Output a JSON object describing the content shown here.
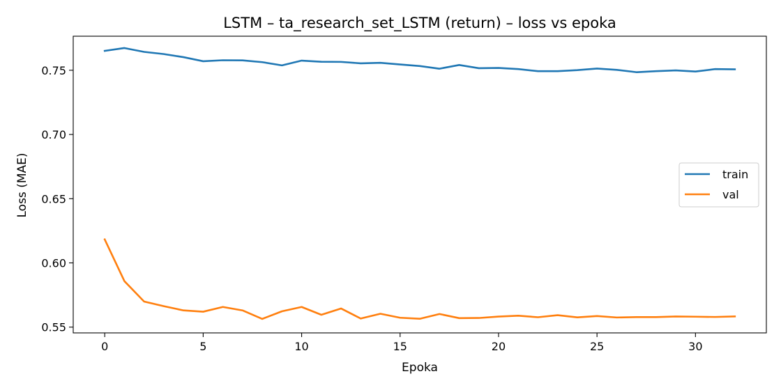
{
  "chart_data": {
    "type": "line",
    "title": "LSTM – ta_research_set_LSTM (return) – loss vs epoka",
    "xlabel": "Epoka",
    "ylabel": "Loss (MAE)",
    "xlim": [
      -1.6,
      33.6
    ],
    "ylim": [
      0.5455,
      0.7765
    ],
    "xticks": [
      0,
      5,
      10,
      15,
      20,
      25,
      30
    ],
    "xtick_labels": [
      "0",
      "5",
      "10",
      "15",
      "20",
      "25",
      "30"
    ],
    "yticks": [
      0.55,
      0.6,
      0.65,
      0.7,
      0.75
    ],
    "ytick_labels": [
      "0.55",
      "0.60",
      "0.65",
      "0.70",
      "0.75"
    ],
    "grid": false,
    "legend_position": "center-right",
    "x": [
      0,
      1,
      2,
      3,
      4,
      5,
      6,
      7,
      8,
      9,
      10,
      11,
      12,
      13,
      14,
      15,
      16,
      17,
      18,
      19,
      20,
      21,
      22,
      23,
      24,
      25,
      26,
      27,
      28,
      29,
      30,
      31,
      32
    ],
    "series": [
      {
        "name": "train",
        "color": "#1f77b4",
        "values": [
          0.7651,
          0.7673,
          0.7643,
          0.7626,
          0.7602,
          0.757,
          0.7578,
          0.7577,
          0.7563,
          0.7538,
          0.7575,
          0.7566,
          0.7565,
          0.7554,
          0.7558,
          0.7545,
          0.7533,
          0.7512,
          0.7541,
          0.7516,
          0.7518,
          0.7509,
          0.7493,
          0.7493,
          0.7501,
          0.7513,
          0.7503,
          0.7485,
          0.7493,
          0.7499,
          0.749,
          0.7509,
          0.7507
        ]
      },
      {
        "name": "val",
        "color": "#ff7f0e",
        "values": [
          0.6183,
          0.5858,
          0.5699,
          0.5663,
          0.563,
          0.562,
          0.5657,
          0.563,
          0.5564,
          0.5623,
          0.5657,
          0.5596,
          0.5645,
          0.5567,
          0.5604,
          0.5573,
          0.5565,
          0.5602,
          0.557,
          0.5571,
          0.5582,
          0.5589,
          0.5577,
          0.5593,
          0.5576,
          0.5586,
          0.5575,
          0.5578,
          0.5578,
          0.5583,
          0.5581,
          0.5579,
          0.5583
        ]
      }
    ]
  }
}
